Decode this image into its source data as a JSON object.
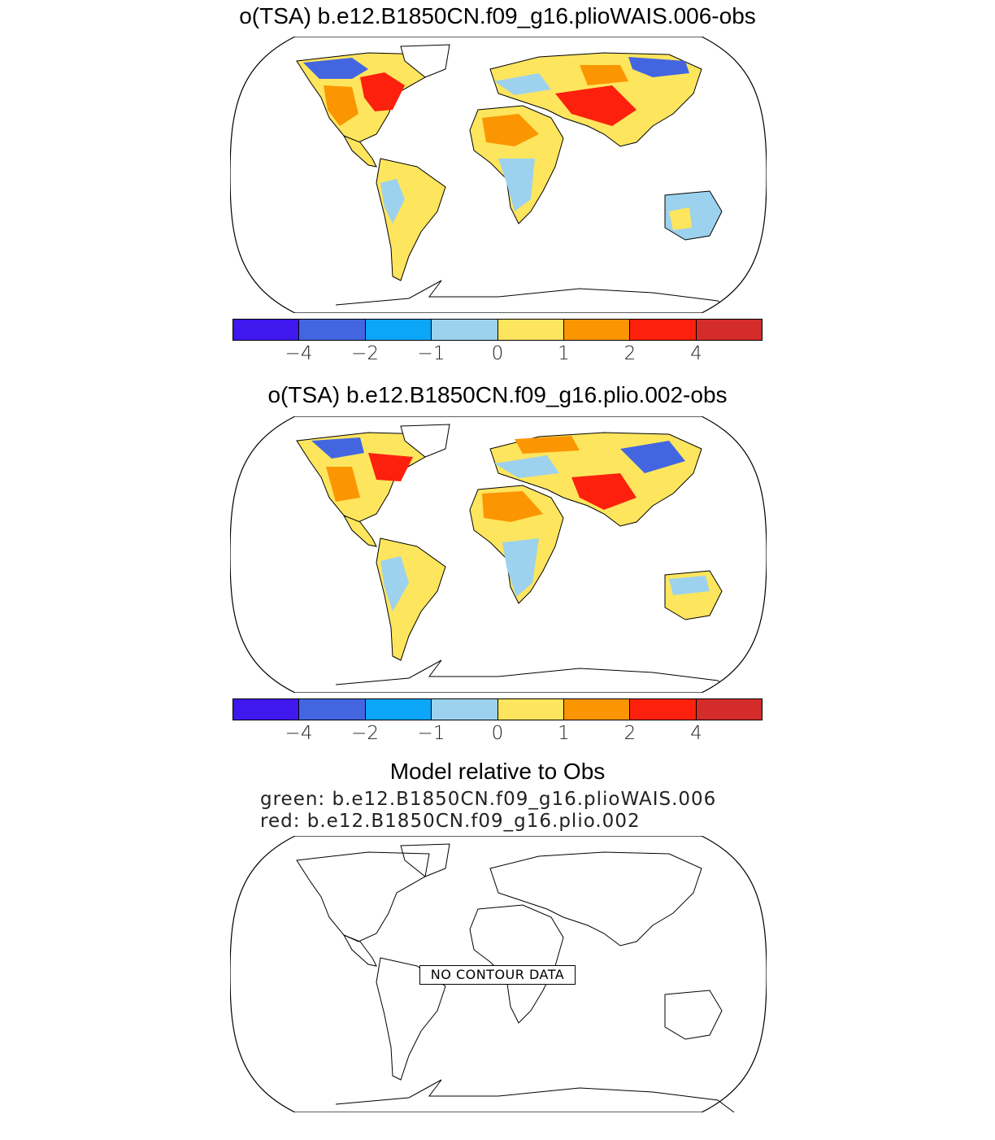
{
  "panels": [
    {
      "title": "o(TSA) b.e12.B1850CN.f09_g16.plioWAIS.006-obs"
    },
    {
      "title": "o(TSA) b.e12.B1850CN.f09_g16.plio.002-obs"
    }
  ],
  "colorbar": {
    "colors": [
      "#3f18ee",
      "#4366e0",
      "#0ba6f8",
      "#9dd2ee",
      "#fde55e",
      "#fb9602",
      "#fd200c",
      "#d42b2b"
    ],
    "tick_labels": [
      "−4",
      "−2",
      "−1",
      "0",
      "1",
      "2",
      "4"
    ]
  },
  "chart_data": {
    "type": "heatmap",
    "variable": "TSA",
    "levels": [
      -4,
      -2,
      -1,
      0,
      1,
      2,
      4
    ]
  },
  "comparison": {
    "title": "Model relative to Obs",
    "green_line": "green: b.e12.B1850CN.f09_g16.plioWAIS.006",
    "red_line": "red: b.e12.B1850CN.f09_g16.plio.002",
    "no_data_label": "NO CONTOUR DATA"
  }
}
